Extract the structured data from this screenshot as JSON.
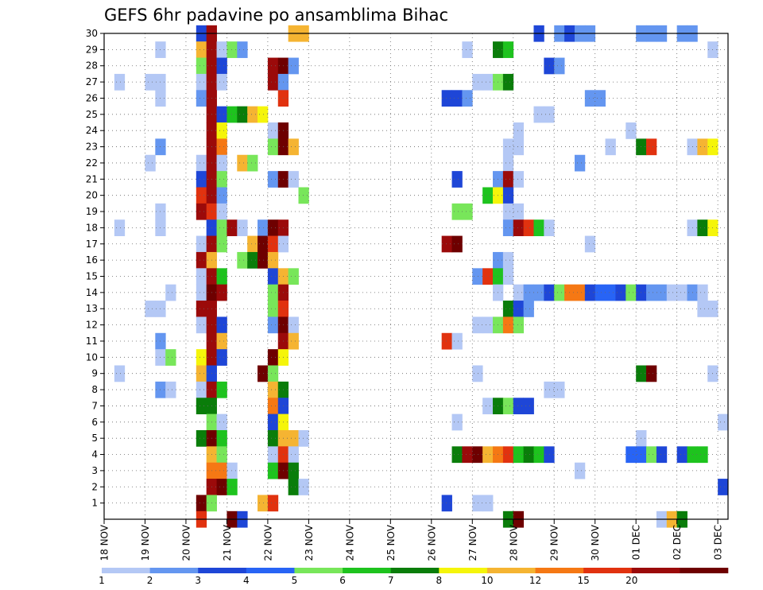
{
  "chart_data": {
    "type": "heatmap",
    "title": "GEFS 6hr padavine po ansamblima Bihac",
    "x_tick_labels": [
      "18 NOV",
      "19 NOV",
      "20 NOV",
      "21 NOV",
      "22 NOV",
      "23 NOV",
      "24 NOV",
      "25 NOV",
      "26 NOV",
      "27 NOV",
      "28 NOV",
      "29 NOV",
      "30 NOV",
      "01 DEC",
      "02 DEC",
      "03 DEC"
    ],
    "y_tick_labels": [
      "1",
      "2",
      "3",
      "4",
      "5",
      "6",
      "7",
      "8",
      "9",
      "10",
      "11",
      "12",
      "13",
      "14",
      "15",
      "16",
      "17",
      "18",
      "19",
      "20",
      "21",
      "22",
      "23",
      "24",
      "25",
      "26",
      "27",
      "28",
      "29",
      "30"
    ],
    "y_range": [
      0,
      30
    ],
    "time_steps": 61,
    "grid": true,
    "legend": {
      "placement": "bottom",
      "labels": [
        "1",
        "2",
        "3",
        "4",
        "5",
        "6",
        "7",
        "8",
        "10",
        "12",
        "15",
        "20"
      ],
      "colors": [
        "#b4c8f5",
        "#6496f0",
        "#1e46d7",
        "#2864f5",
        "#78e65a",
        "#1ec31e",
        "#0a7d0a",
        "#f5f50a",
        "#f5b432",
        "#f57814",
        "#e1320f",
        "#9b0a0a",
        "#6e0000"
      ]
    },
    "cells": [
      [
        30,
        9,
        2
      ],
      [
        30,
        10,
        11
      ],
      [
        30,
        18,
        8
      ],
      [
        30,
        19,
        8
      ],
      [
        30,
        42,
        2
      ],
      [
        30,
        44,
        1
      ],
      [
        30,
        45,
        2
      ],
      [
        30,
        46,
        1
      ],
      [
        30,
        47,
        1
      ],
      [
        30,
        52,
        1
      ],
      [
        30,
        53,
        1
      ],
      [
        30,
        54,
        1
      ],
      [
        30,
        56,
        1
      ],
      [
        30,
        57,
        1
      ],
      [
        29,
        5,
        0
      ],
      [
        29,
        9,
        8
      ],
      [
        29,
        10,
        11
      ],
      [
        29,
        11,
        0
      ],
      [
        29,
        12,
        4
      ],
      [
        29,
        13,
        1
      ],
      [
        29,
        35,
        0
      ],
      [
        29,
        38,
        6
      ],
      [
        29,
        39,
        5
      ],
      [
        29,
        59,
        0
      ],
      [
        28,
        9,
        4
      ],
      [
        28,
        10,
        11
      ],
      [
        28,
        11,
        2
      ],
      [
        28,
        16,
        11
      ],
      [
        28,
        17,
        12
      ],
      [
        28,
        18,
        1
      ],
      [
        28,
        43,
        2
      ],
      [
        28,
        44,
        1
      ],
      [
        27,
        1,
        0
      ],
      [
        27,
        4,
        0
      ],
      [
        27,
        5,
        0
      ],
      [
        27,
        9,
        0
      ],
      [
        27,
        10,
        11
      ],
      [
        27,
        11,
        0
      ],
      [
        27,
        16,
        11
      ],
      [
        27,
        17,
        1
      ],
      [
        27,
        36,
        0
      ],
      [
        27,
        37,
        0
      ],
      [
        27,
        38,
        4
      ],
      [
        27,
        39,
        6
      ],
      [
        26,
        5,
        0
      ],
      [
        26,
        9,
        1
      ],
      [
        26,
        10,
        11
      ],
      [
        26,
        17,
        10
      ],
      [
        26,
        33,
        2
      ],
      [
        26,
        34,
        2
      ],
      [
        26,
        35,
        1
      ],
      [
        26,
        47,
        1
      ],
      [
        26,
        48,
        1
      ],
      [
        25,
        10,
        11
      ],
      [
        25,
        11,
        2
      ],
      [
        25,
        12,
        5
      ],
      [
        25,
        13,
        6
      ],
      [
        25,
        14,
        8
      ],
      [
        25,
        15,
        7
      ],
      [
        25,
        42,
        0
      ],
      [
        25,
        43,
        0
      ],
      [
        24,
        10,
        11
      ],
      [
        24,
        11,
        7
      ],
      [
        24,
        16,
        0
      ],
      [
        24,
        17,
        12
      ],
      [
        24,
        40,
        0
      ],
      [
        24,
        51,
        0
      ],
      [
        23,
        5,
        1
      ],
      [
        23,
        10,
        11
      ],
      [
        23,
        11,
        9
      ],
      [
        23,
        16,
        4
      ],
      [
        23,
        17,
        12
      ],
      [
        23,
        18,
        8
      ],
      [
        23,
        39,
        0
      ],
      [
        23,
        40,
        0
      ],
      [
        23,
        49,
        0
      ],
      [
        23,
        52,
        6
      ],
      [
        23,
        53,
        10
      ],
      [
        23,
        57,
        0
      ],
      [
        23,
        58,
        8
      ],
      [
        23,
        59,
        7
      ],
      [
        22,
        4,
        0
      ],
      [
        22,
        9,
        0
      ],
      [
        22,
        10,
        11
      ],
      [
        22,
        11,
        0
      ],
      [
        22,
        13,
        8
      ],
      [
        22,
        14,
        4
      ],
      [
        22,
        39,
        0
      ],
      [
        22,
        46,
        1
      ],
      [
        21,
        9,
        2
      ],
      [
        21,
        10,
        11
      ],
      [
        21,
        11,
        4
      ],
      [
        21,
        16,
        1
      ],
      [
        21,
        17,
        12
      ],
      [
        21,
        18,
        0
      ],
      [
        21,
        34,
        2
      ],
      [
        21,
        38,
        1
      ],
      [
        21,
        39,
        11
      ],
      [
        21,
        40,
        0
      ],
      [
        20,
        9,
        10
      ],
      [
        20,
        10,
        11
      ],
      [
        20,
        11,
        1
      ],
      [
        20,
        19,
        4
      ],
      [
        20,
        37,
        5
      ],
      [
        20,
        38,
        7
      ],
      [
        20,
        39,
        2
      ],
      [
        19,
        5,
        0
      ],
      [
        19,
        9,
        11
      ],
      [
        19,
        10,
        10
      ],
      [
        19,
        11,
        0
      ],
      [
        19,
        34,
        4
      ],
      [
        19,
        35,
        4
      ],
      [
        19,
        39,
        0
      ],
      [
        19,
        40,
        0
      ],
      [
        18,
        1,
        0
      ],
      [
        18,
        5,
        0
      ],
      [
        18,
        10,
        2
      ],
      [
        18,
        11,
        4
      ],
      [
        18,
        12,
        11
      ],
      [
        18,
        13,
        0
      ],
      [
        18,
        15,
        1
      ],
      [
        18,
        16,
        12
      ],
      [
        18,
        17,
        11
      ],
      [
        18,
        39,
        1
      ],
      [
        18,
        40,
        11
      ],
      [
        18,
        41,
        10
      ],
      [
        18,
        42,
        5
      ],
      [
        18,
        43,
        0
      ],
      [
        18,
        57,
        0
      ],
      [
        18,
        58,
        6
      ],
      [
        18,
        59,
        7
      ],
      [
        17,
        9,
        0
      ],
      [
        17,
        10,
        11
      ],
      [
        17,
        11,
        4
      ],
      [
        17,
        14,
        8
      ],
      [
        17,
        15,
        12
      ],
      [
        17,
        16,
        10
      ],
      [
        17,
        17,
        0
      ],
      [
        17,
        33,
        11
      ],
      [
        17,
        34,
        12
      ],
      [
        17,
        47,
        0
      ],
      [
        16,
        9,
        11
      ],
      [
        16,
        10,
        8
      ],
      [
        16,
        13,
        4
      ],
      [
        16,
        14,
        6
      ],
      [
        16,
        15,
        12
      ],
      [
        16,
        16,
        8
      ],
      [
        16,
        38,
        1
      ],
      [
        16,
        39,
        0
      ],
      [
        15,
        9,
        0
      ],
      [
        15,
        10,
        11
      ],
      [
        15,
        11,
        5
      ],
      [
        15,
        16,
        2
      ],
      [
        15,
        17,
        8
      ],
      [
        15,
        18,
        4
      ],
      [
        15,
        36,
        1
      ],
      [
        15,
        37,
        10
      ],
      [
        15,
        38,
        5
      ],
      [
        15,
        39,
        0
      ],
      [
        14,
        6,
        0
      ],
      [
        14,
        9,
        0
      ],
      [
        14,
        10,
        12
      ],
      [
        14,
        11,
        11
      ],
      [
        14,
        16,
        4
      ],
      [
        14,
        17,
        11
      ],
      [
        14,
        38,
        0
      ],
      [
        14,
        40,
        0
      ],
      [
        14,
        41,
        1
      ],
      [
        14,
        42,
        1
      ],
      [
        14,
        43,
        2
      ],
      [
        14,
        44,
        4
      ],
      [
        14,
        45,
        9
      ],
      [
        14,
        46,
        9
      ],
      [
        14,
        47,
        2
      ],
      [
        14,
        48,
        3
      ],
      [
        14,
        49,
        3
      ],
      [
        14,
        50,
        2
      ],
      [
        14,
        51,
        4
      ],
      [
        14,
        52,
        2
      ],
      [
        14,
        53,
        1
      ],
      [
        14,
        54,
        1
      ],
      [
        14,
        55,
        0
      ],
      [
        14,
        56,
        0
      ],
      [
        14,
        57,
        1
      ],
      [
        14,
        58,
        0
      ],
      [
        13,
        4,
        0
      ],
      [
        13,
        5,
        0
      ],
      [
        13,
        9,
        11
      ],
      [
        13,
        10,
        11
      ],
      [
        13,
        16,
        4
      ],
      [
        13,
        17,
        10
      ],
      [
        13,
        39,
        6
      ],
      [
        13,
        40,
        2
      ],
      [
        13,
        41,
        1
      ],
      [
        13,
        58,
        0
      ],
      [
        13,
        59,
        0
      ],
      [
        12,
        9,
        0
      ],
      [
        12,
        10,
        11
      ],
      [
        12,
        11,
        2
      ],
      [
        12,
        16,
        1
      ],
      [
        12,
        17,
        12
      ],
      [
        12,
        18,
        0
      ],
      [
        12,
        36,
        0
      ],
      [
        12,
        37,
        0
      ],
      [
        12,
        38,
        4
      ],
      [
        12,
        39,
        9
      ],
      [
        12,
        40,
        4
      ],
      [
        11,
        5,
        1
      ],
      [
        11,
        10,
        11
      ],
      [
        11,
        11,
        8
      ],
      [
        11,
        17,
        11
      ],
      [
        11,
        18,
        8
      ],
      [
        11,
        33,
        10
      ],
      [
        11,
        34,
        0
      ],
      [
        10,
        5,
        0
      ],
      [
        10,
        6,
        4
      ],
      [
        10,
        9,
        7
      ],
      [
        10,
        10,
        11
      ],
      [
        10,
        11,
        2
      ],
      [
        10,
        16,
        12
      ],
      [
        10,
        17,
        7
      ],
      [
        9,
        1,
        0
      ],
      [
        9,
        9,
        8
      ],
      [
        9,
        10,
        2
      ],
      [
        9,
        15,
        12
      ],
      [
        9,
        16,
        4
      ],
      [
        9,
        36,
        0
      ],
      [
        9,
        52,
        6
      ],
      [
        9,
        53,
        12
      ],
      [
        9,
        59,
        0
      ],
      [
        8,
        5,
        1
      ],
      [
        8,
        6,
        0
      ],
      [
        8,
        9,
        0
      ],
      [
        8,
        10,
        11
      ],
      [
        8,
        11,
        5
      ],
      [
        8,
        16,
        8
      ],
      [
        8,
        17,
        6
      ],
      [
        8,
        43,
        0
      ],
      [
        8,
        44,
        0
      ],
      [
        7,
        9,
        6
      ],
      [
        7,
        10,
        6
      ],
      [
        7,
        16,
        9
      ],
      [
        7,
        17,
        2
      ],
      [
        7,
        37,
        0
      ],
      [
        7,
        38,
        6
      ],
      [
        7,
        39,
        4
      ],
      [
        7,
        40,
        2
      ],
      [
        7,
        41,
        2
      ],
      [
        6,
        10,
        4
      ],
      [
        6,
        11,
        0
      ],
      [
        6,
        16,
        2
      ],
      [
        6,
        17,
        7
      ],
      [
        6,
        34,
        0
      ],
      [
        6,
        60,
        0
      ],
      [
        5,
        9,
        6
      ],
      [
        5,
        10,
        12
      ],
      [
        5,
        11,
        5
      ],
      [
        5,
        16,
        6
      ],
      [
        5,
        17,
        8
      ],
      [
        5,
        18,
        8
      ],
      [
        5,
        19,
        0
      ],
      [
        5,
        52,
        0
      ],
      [
        4,
        10,
        8
      ],
      [
        4,
        11,
        4
      ],
      [
        4,
        16,
        0
      ],
      [
        4,
        17,
        10
      ],
      [
        4,
        18,
        0
      ],
      [
        4,
        34,
        6
      ],
      [
        4,
        35,
        11
      ],
      [
        4,
        36,
        12
      ],
      [
        4,
        37,
        8
      ],
      [
        4,
        38,
        9
      ],
      [
        4,
        39,
        10
      ],
      [
        4,
        40,
        5
      ],
      [
        4,
        41,
        6
      ],
      [
        4,
        42,
        5
      ],
      [
        4,
        43,
        2
      ],
      [
        4,
        51,
        3
      ],
      [
        4,
        52,
        3
      ],
      [
        4,
        53,
        4
      ],
      [
        4,
        54,
        2
      ],
      [
        4,
        56,
        2
      ],
      [
        4,
        57,
        5
      ],
      [
        4,
        58,
        5
      ],
      [
        3,
        10,
        9
      ],
      [
        3,
        11,
        9
      ],
      [
        3,
        12,
        0
      ],
      [
        3,
        16,
        5
      ],
      [
        3,
        17,
        12
      ],
      [
        3,
        18,
        6
      ],
      [
        3,
        46,
        0
      ],
      [
        2,
        10,
        11
      ],
      [
        2,
        11,
        12
      ],
      [
        2,
        12,
        5
      ],
      [
        2,
        18,
        6
      ],
      [
        2,
        19,
        0
      ],
      [
        2,
        60,
        2
      ],
      [
        1,
        9,
        12
      ],
      [
        1,
        10,
        4
      ],
      [
        1,
        15,
        8
      ],
      [
        1,
        16,
        10
      ],
      [
        1,
        33,
        2
      ],
      [
        1,
        36,
        0
      ],
      [
        1,
        37,
        0
      ],
      [
        0,
        9,
        10
      ],
      [
        0,
        12,
        12
      ],
      [
        0,
        13,
        2
      ],
      [
        0,
        39,
        6
      ],
      [
        0,
        40,
        12
      ],
      [
        0,
        54,
        0
      ],
      [
        0,
        55,
        8
      ],
      [
        0,
        56,
        6
      ]
    ]
  }
}
